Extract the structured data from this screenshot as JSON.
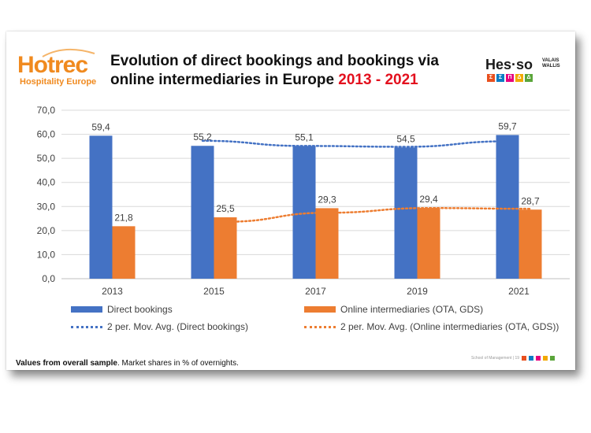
{
  "header": {
    "title_line1": "Evolution of direct bookings and bookings via",
    "title_line2": "online intermediaries in Europe ",
    "title_years": "2013 - 2021"
  },
  "logos": {
    "hotrec_word": "Hotrec",
    "hotrec_sub": "Hospitality Europe",
    "hes_word": "Hes·so",
    "hes_valais_1": "VALAIS",
    "hes_valais_2": "WALLIS",
    "hes_squares": [
      "Σ",
      "Σ",
      "Π",
      "Δ",
      "Δ"
    ]
  },
  "footnote": {
    "bold": "Values from overall sample",
    "rest": ". Market shares in % of overnights."
  },
  "page_footer": "School of Management | 19",
  "colors": {
    "direct": "#4472c4",
    "online": "#ed7d31",
    "title_accent": "#e3101e",
    "hotrec_orange": "#f08a1f"
  },
  "chart_data": {
    "type": "bar",
    "categories": [
      "2013",
      "2015",
      "2017",
      "2019",
      "2021"
    ],
    "series": [
      {
        "name": "Direct bookings",
        "values": [
          59.4,
          55.2,
          55.1,
          54.5,
          59.7
        ],
        "labels": [
          "59,4",
          "55,2",
          "55,1",
          "54,5",
          "59,7"
        ]
      },
      {
        "name": "Online intermediaries (OTA, GDS)",
        "values": [
          21.8,
          25.5,
          29.3,
          29.4,
          28.7
        ],
        "labels": [
          "21,8",
          "25,5",
          "29,3",
          "29,4",
          "28,7"
        ]
      }
    ],
    "trendlines": [
      {
        "name": "2 per. Mov. Avg. (Direct bookings)",
        "type": "moving-average",
        "period": 2,
        "of_series": 0
      },
      {
        "name": "2 per. Mov. Avg. (Online intermediaries (OTA, GDS))",
        "type": "moving-average",
        "period": 2,
        "of_series": 1
      }
    ],
    "yticks": [
      "0,0",
      "10,0",
      "20,0",
      "30,0",
      "40,0",
      "50,0",
      "60,0",
      "70,0"
    ],
    "ylim": [
      0,
      70
    ],
    "grid": true,
    "legend_position": "bottom"
  }
}
